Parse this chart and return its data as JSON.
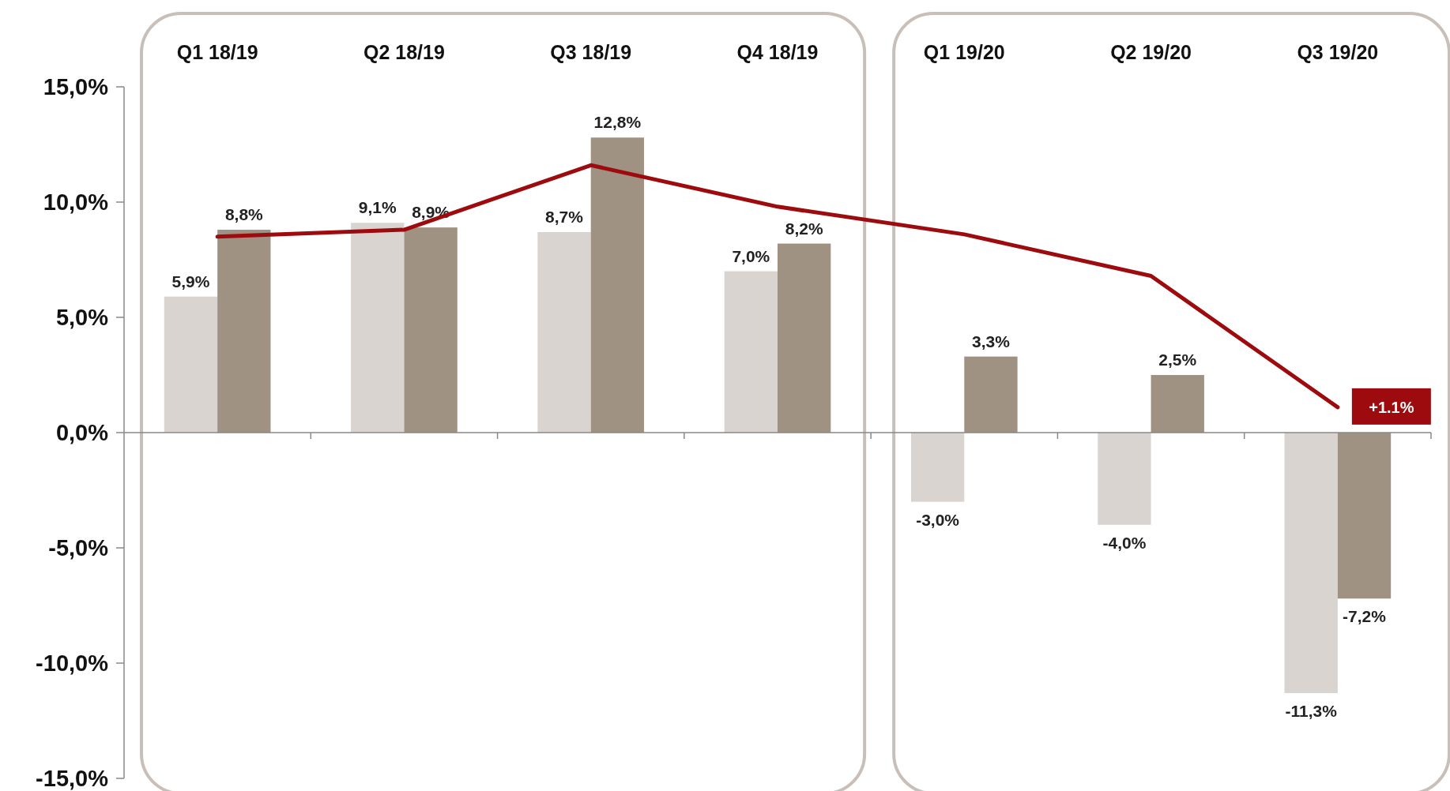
{
  "chart_data": {
    "type": "bar",
    "categories": [
      "Q1 18/19",
      "Q2 18/19",
      "Q3 18/19",
      "Q4 18/19",
      "Q1 19/20",
      "Q2 19/20",
      "Q3 19/20"
    ],
    "series": [
      {
        "color": "#d9d4cf",
        "values": [
          5.9,
          9.1,
          8.7,
          7.0,
          -3.0,
          -4.0,
          -11.3
        ],
        "value_labels": [
          "5,9%",
          "9,1%",
          "8,7%",
          "7,0%",
          "-3,0%",
          "-4,0%",
          "-11,3%"
        ]
      },
      {
        "color": "#a09282",
        "values": [
          8.8,
          8.9,
          12.8,
          8.2,
          3.3,
          2.5,
          -7.2
        ],
        "value_labels": [
          "8,8%",
          "8,9%",
          "12,8%",
          "8,2%",
          "3,3%",
          "2,5%",
          "-7,2%"
        ]
      },
      {
        "type": "line",
        "color": "#9e0b0f",
        "values": [
          8.5,
          8.8,
          11.6,
          9.8,
          8.6,
          6.8,
          1.1
        ]
      }
    ],
    "ylim": [
      -15,
      15
    ],
    "yticks": [
      {
        "value": -15,
        "label": "-15,0%"
      },
      {
        "value": -10,
        "label": "-10,0%"
      },
      {
        "value": -5,
        "label": "-5,0%"
      },
      {
        "value": 0,
        "label": "0,0%"
      },
      {
        "value": 5,
        "label": "5,0%"
      },
      {
        "value": 10,
        "label": "10,0%"
      },
      {
        "value": 15,
        "label": "15,0%"
      }
    ],
    "marker": "none",
    "line_style": "solid",
    "annotations": [
      {
        "text": "+1.1%",
        "x": "Q3 19/20",
        "y": 1.1
      }
    ]
  }
}
